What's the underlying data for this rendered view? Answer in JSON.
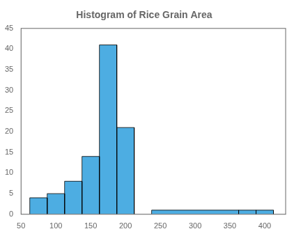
{
  "chart_data": {
    "type": "histogram",
    "title": "Histogram of Rice Grain Area",
    "bins": [
      62.5,
      87.5,
      112.5,
      137.5,
      162.5,
      187.5,
      212.5,
      237.5,
      362.5,
      387.5,
      412.5
    ],
    "values": [
      4,
      5,
      8,
      14,
      41,
      21,
      0,
      1,
      1,
      1
    ],
    "color": "#4DADE2",
    "xlim": [
      50,
      430
    ],
    "ylim": [
      0,
      45
    ],
    "xticks": [
      50,
      100,
      150,
      200,
      250,
      300,
      350,
      400
    ],
    "yticks": [
      0,
      5,
      10,
      15,
      20,
      25,
      30,
      35,
      40,
      45
    ],
    "grid": false
  }
}
